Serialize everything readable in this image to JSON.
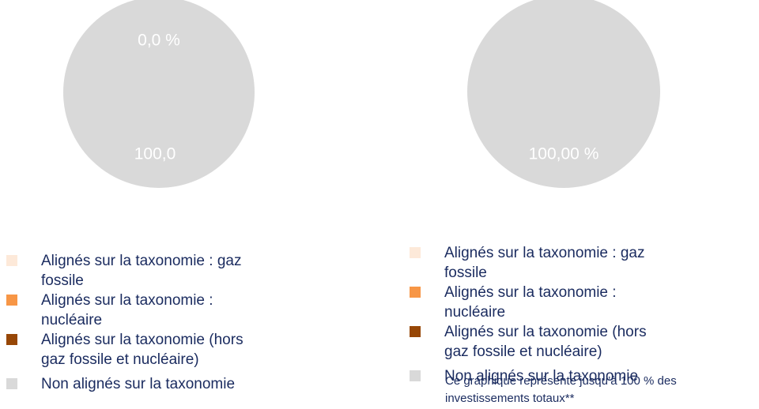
{
  "chart_data": [
    {
      "type": "pie",
      "categories": [
        "Alignés sur la taxonomie : gaz fossile",
        "Alignés sur la taxonomie : nucléaire",
        "Alignés sur la taxonomie (hors gaz fossile et nucléaire)",
        "Non alignés sur la taxonomie"
      ],
      "values": [
        0,
        0,
        0,
        100
      ],
      "value_labels": [
        null,
        null,
        "0,0 %",
        "100,0"
      ],
      "colors": [
        "#fde9d9",
        "#f79646",
        "#974706",
        "#d9d9d9"
      ]
    },
    {
      "type": "pie",
      "categories": [
        "Alignés sur la taxonomie : gaz fossile",
        "Alignés sur la taxonomie : nucléaire",
        "Alignés sur la taxonomie (hors gaz fossile et nucléaire)",
        "Non alignés sur la taxonomie"
      ],
      "values": [
        0,
        0,
        0,
        100
      ],
      "value_labels": [
        null,
        null,
        null,
        "100,00 %"
      ],
      "colors": [
        "#fde9d9",
        "#f79646",
        "#974706",
        "#d9d9d9"
      ],
      "note": "Ce graphique représente jusqu’à 100 % des investissements totaux**"
    }
  ]
}
